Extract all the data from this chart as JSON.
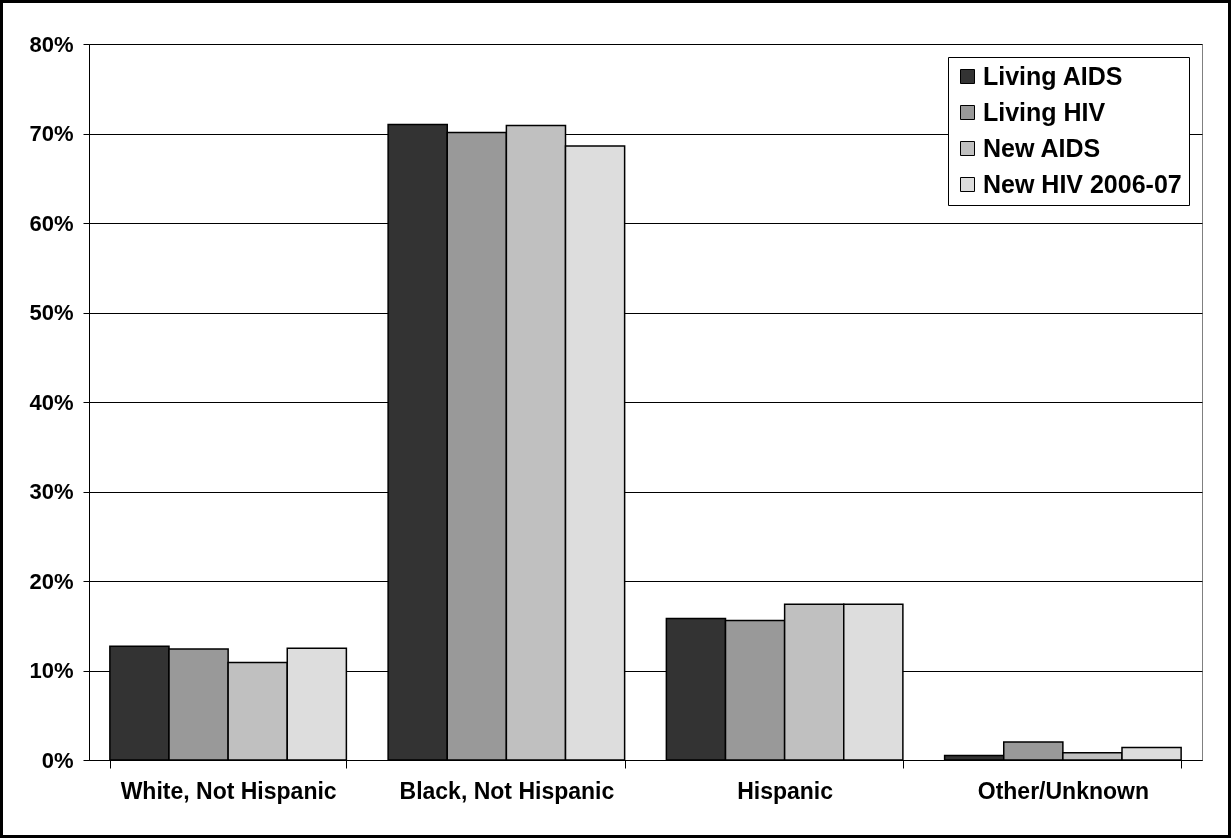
{
  "chart_data": {
    "type": "bar",
    "categories": [
      "White, Not Hispanic",
      "Black, Not Hispanic",
      "Hispanic",
      "Other/Unknown"
    ],
    "series": [
      {
        "name": "Living AIDS",
        "color": "#333333",
        "values": [
          12.7,
          71.0,
          15.8,
          0.5
        ]
      },
      {
        "name": "Living HIV",
        "color": "#999999",
        "values": [
          12.4,
          70.1,
          15.6,
          2.0
        ]
      },
      {
        "name": "New AIDS",
        "color": "#c0c0c0",
        "values": [
          10.9,
          70.9,
          17.4,
          0.8
        ]
      },
      {
        "name": "New HIV 2006-07",
        "color": "#dddddd",
        "values": [
          12.5,
          68.6,
          17.4,
          1.4
        ]
      }
    ],
    "ylim": [
      0,
      80
    ],
    "yticks": [
      {
        "value": 0,
        "label": "0%"
      },
      {
        "value": 10,
        "label": "10%"
      },
      {
        "value": 20,
        "label": "20%"
      },
      {
        "value": 30,
        "label": "30%"
      },
      {
        "value": 40,
        "label": "40%"
      },
      {
        "value": 50,
        "label": "50%"
      },
      {
        "value": 60,
        "label": "60%"
      },
      {
        "value": 70,
        "label": "70%"
      },
      {
        "value": 80,
        "label": "80%"
      }
    ],
    "grid": "y",
    "legend": "top right"
  }
}
